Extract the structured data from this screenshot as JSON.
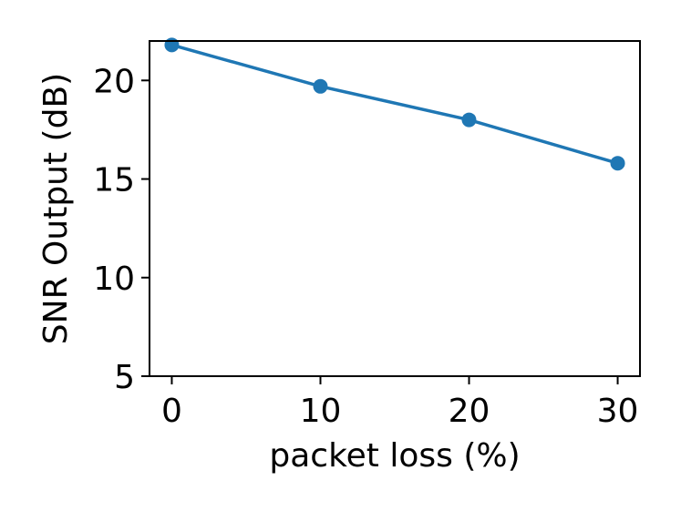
{
  "chart_data": {
    "type": "line",
    "title": "",
    "xlabel": "packet loss (%)",
    "ylabel": "SNR Output (dB)",
    "xlim": [
      -1.5,
      31.5
    ],
    "ylim": [
      5,
      22
    ],
    "xticks": [
      0,
      10,
      20,
      30
    ],
    "yticks": [
      5,
      10,
      15,
      20
    ],
    "grid": false,
    "series": [
      {
        "x": [
          0,
          10,
          20,
          30
        ],
        "y": [
          21.8,
          19.7,
          18.0,
          15.8
        ],
        "color": "#1f77b4",
        "marker": "circle"
      }
    ]
  }
}
